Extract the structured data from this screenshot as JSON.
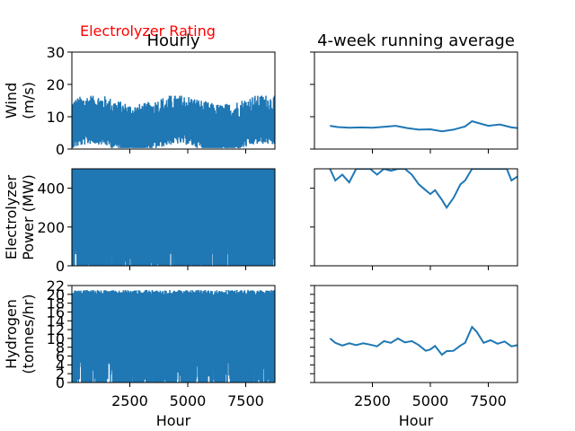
{
  "annotation": "Electrolyzer Rating",
  "line_color": "#1f77b4",
  "annotation_color": "#ff0000",
  "chart_data": [
    {
      "type": "line",
      "panel": "wind-hourly",
      "title": "Hourly",
      "ylabel": [
        "Wind",
        "(m/s)"
      ],
      "xlim": [
        0,
        8760
      ],
      "ylim": [
        0,
        30
      ],
      "yticks": [
        0,
        10,
        20,
        30
      ],
      "xticks": [
        2500,
        5000,
        7500
      ],
      "show_xtick_labels": false,
      "series": [
        {
          "x": [
            0,
            8760
          ],
          "y_min": 0.3,
          "y_max": 16.5,
          "typical_range": [
            3,
            11
          ]
        }
      ]
    },
    {
      "type": "line",
      "panel": "wind-running-average",
      "title": "4-week running average",
      "xlim": [
        0,
        8760
      ],
      "ylim": [
        0,
        30
      ],
      "xticks": [
        2500,
        5000,
        7500
      ],
      "show_xtick_labels": false,
      "series": [
        {
          "x": [
            672,
            1000,
            1500,
            2000,
            2500,
            3000,
            3500,
            4000,
            4500,
            5000,
            5500,
            6000,
            6500,
            6800,
            7000,
            7500,
            8000,
            8500,
            8760
          ],
          "y": [
            7.2,
            6.8,
            6.6,
            6.7,
            6.6,
            6.9,
            7.2,
            6.5,
            6.0,
            6.1,
            5.5,
            6.0,
            7.0,
            8.6,
            8.2,
            7.2,
            7.6,
            6.7,
            6.5
          ]
        }
      ]
    },
    {
      "type": "line",
      "panel": "electrolyzer-hourly",
      "ylabel": [
        "Electrolyzer",
        "Power (MW)"
      ],
      "xlim": [
        0,
        8760
      ],
      "ylim": [
        0,
        500
      ],
      "yticks": [
        0,
        200,
        400
      ],
      "xticks": [
        2500,
        5000,
        7500
      ],
      "show_xtick_labels": false,
      "series": [
        {
          "x": [
            0,
            8760
          ],
          "y_min": 0,
          "y_max": 500
        }
      ]
    },
    {
      "type": "line",
      "panel": "electrolyzer-running-average",
      "xlim": [
        0,
        8760
      ],
      "ylim": [
        0,
        500
      ],
      "xticks": [
        2500,
        5000,
        7500
      ],
      "show_xtick_labels": false,
      "series": [
        {
          "x": [
            672,
            900,
            1200,
            1500,
            1800,
            2100,
            2400,
            2700,
            3000,
            3300,
            3600,
            3900,
            4200,
            4500,
            4800,
            5000,
            5200,
            5500,
            5700,
            6000,
            6300,
            6500,
            6800,
            7100,
            7400,
            7700,
            8000,
            8300,
            8500,
            8760
          ],
          "y": [
            500,
            440,
            470,
            430,
            500,
            500,
            500,
            470,
            500,
            490,
            500,
            500,
            470,
            420,
            390,
            370,
            390,
            340,
            300,
            350,
            420,
            440,
            500,
            500,
            500,
            500,
            500,
            500,
            440,
            460
          ]
        }
      ]
    },
    {
      "type": "line",
      "panel": "hydrogen-hourly",
      "ylabel": [
        "Hydrogen",
        "(tonnes/hr)"
      ],
      "xlabel": "Hour",
      "xlim": [
        0,
        8760
      ],
      "ylim": [
        0,
        22
      ],
      "yticks": [
        0,
        2,
        4,
        6,
        8,
        10,
        12,
        14,
        16,
        18,
        20,
        22
      ],
      "xticks": [
        2500,
        5000,
        7500
      ],
      "show_xtick_labels": true,
      "series": [
        {
          "x": [
            0,
            8760
          ],
          "y_min": 0,
          "y_max": 21
        }
      ]
    },
    {
      "type": "line",
      "panel": "hydrogen-running-average",
      "xlabel": "Hour",
      "xlim": [
        0,
        8760
      ],
      "ylim": [
        0,
        22
      ],
      "xticks": [
        2500,
        5000,
        7500
      ],
      "show_xtick_labels": true,
      "series": [
        {
          "x": [
            672,
            900,
            1200,
            1500,
            1800,
            2100,
            2400,
            2700,
            3000,
            3300,
            3600,
            3900,
            4200,
            4500,
            4800,
            5000,
            5200,
            5500,
            5700,
            6000,
            6300,
            6500,
            6800,
            7000,
            7300,
            7600,
            7900,
            8200,
            8500,
            8760
          ],
          "y": [
            10.0,
            9.0,
            8.4,
            8.9,
            8.5,
            8.9,
            8.6,
            8.2,
            9.4,
            9.0,
            10.0,
            9.1,
            9.4,
            8.5,
            7.2,
            7.5,
            8.3,
            6.3,
            7.1,
            7.2,
            8.4,
            9.0,
            12.6,
            11.5,
            9.0,
            9.6,
            8.8,
            9.3,
            8.2,
            8.5
          ]
        }
      ]
    }
  ]
}
